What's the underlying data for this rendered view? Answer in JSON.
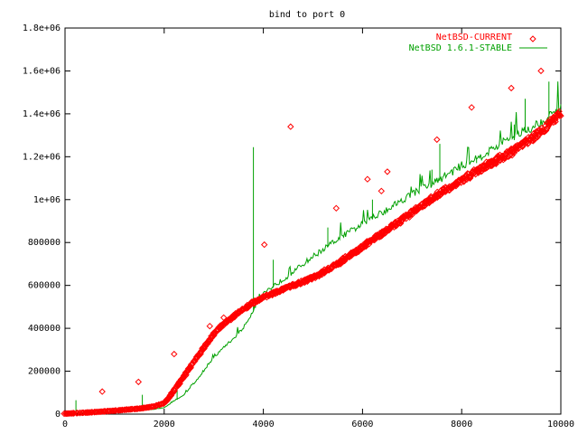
{
  "chart_data": {
    "type": "scatter",
    "title": "bind to port 0",
    "xlabel": "",
    "ylabel": "",
    "xlim": [
      0,
      10000
    ],
    "ylim": [
      0,
      1800000
    ],
    "x_ticks": [
      0,
      2000,
      4000,
      6000,
      8000,
      10000
    ],
    "x_tick_labels": [
      "0",
      "2000",
      "4000",
      "6000",
      "8000",
      "10000"
    ],
    "y_ticks": [
      0,
      200000,
      400000,
      600000,
      800000,
      1000000,
      1200000,
      1400000,
      1600000,
      1800000
    ],
    "y_tick_labels": [
      "0",
      "200000",
      "400000",
      "600000",
      "800000",
      "1e+06",
      "1.2e+06",
      "1.4e+06",
      "1.6e+06",
      "1.8e+06"
    ],
    "grid": false,
    "legend_position": "top-right",
    "series": [
      {
        "name": "NetBSD-CURRENT",
        "style": "points",
        "marker": "diamond",
        "color": "#ff0000",
        "x": [
          0,
          500,
          1000,
          1500,
          1800,
          2000,
          2200,
          2400,
          2600,
          2800,
          3000,
          3200,
          3400,
          3600,
          3800,
          4000,
          4500,
          5000,
          5500,
          6000,
          6500,
          7000,
          7500,
          8000,
          8500,
          9000,
          9500,
          10000
        ],
        "y": [
          2000,
          8000,
          16000,
          26000,
          36000,
          50000,
          110000,
          175000,
          245000,
          310000,
          375000,
          420000,
          455000,
          490000,
          520000,
          545000,
          590000,
          635000,
          700000,
          780000,
          860000,
          940000,
          1020000,
          1090000,
          1160000,
          1220000,
          1300000,
          1400000
        ],
        "outliers": [
          {
            "x": 750,
            "y": 105000
          },
          {
            "x": 1480,
            "y": 150000
          },
          {
            "x": 2200,
            "y": 280000
          },
          {
            "x": 2920,
            "y": 410000
          },
          {
            "x": 3200,
            "y": 450000
          },
          {
            "x": 4020,
            "y": 790000
          },
          {
            "x": 4550,
            "y": 1340000
          },
          {
            "x": 5470,
            "y": 960000
          },
          {
            "x": 6100,
            "y": 1095000
          },
          {
            "x": 6380,
            "y": 1040000
          },
          {
            "x": 6500,
            "y": 1130000
          },
          {
            "x": 7500,
            "y": 1280000
          },
          {
            "x": 8200,
            "y": 1430000
          },
          {
            "x": 9000,
            "y": 1520000
          },
          {
            "x": 9600,
            "y": 1600000
          }
        ]
      },
      {
        "name": "NetBSD 1.6.1-STABLE",
        "style": "lines",
        "color": "#00a000",
        "x": [
          0,
          500,
          1000,
          1500,
          1800,
          2000,
          2200,
          2400,
          2600,
          2800,
          3000,
          3200,
          3400,
          3600,
          3800,
          4000,
          4500,
          5000,
          5500,
          6000,
          6500,
          7000,
          7500,
          8000,
          8500,
          9000,
          9500,
          10000
        ],
        "y": [
          2000,
          6000,
          12000,
          18000,
          22000,
          30000,
          60000,
          90000,
          140000,
          200000,
          260000,
          310000,
          350000,
          400000,
          480000,
          560000,
          640000,
          730000,
          810000,
          880000,
          950000,
          1020000,
          1080000,
          1150000,
          1210000,
          1280000,
          1340000,
          1410000
        ],
        "spikes": [
          {
            "x": 220,
            "y": 65000
          },
          {
            "x": 1550,
            "y": 90000
          },
          {
            "x": 2250,
            "y": 140000
          },
          {
            "x": 3800,
            "y": 1245000
          },
          {
            "x": 4200,
            "y": 720000
          },
          {
            "x": 5300,
            "y": 870000
          },
          {
            "x": 6200,
            "y": 1000000
          },
          {
            "x": 7400,
            "y": 1140000
          },
          {
            "x": 7550,
            "y": 1260000
          },
          {
            "x": 8300,
            "y": 1170000
          },
          {
            "x": 9050,
            "y": 1350000
          },
          {
            "x": 9270,
            "y": 1470000
          },
          {
            "x": 9750,
            "y": 1550000
          }
        ]
      }
    ]
  }
}
